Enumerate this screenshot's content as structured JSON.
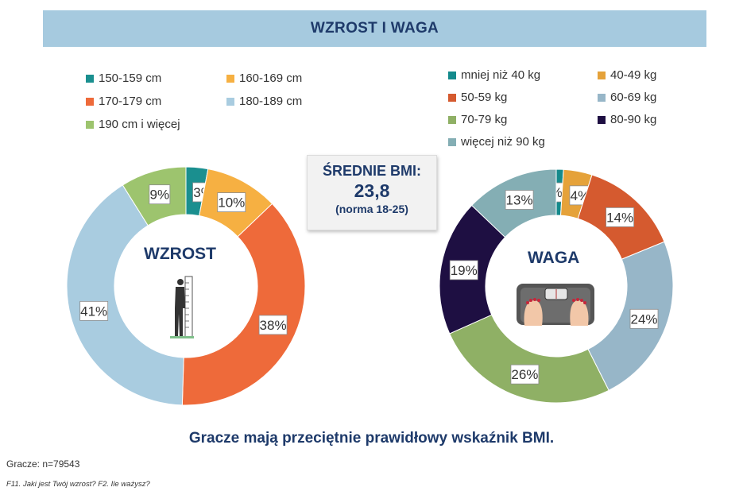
{
  "header": {
    "title": "WZROST I WAGA"
  },
  "bmi_box": {
    "title": "ŚREDNIE BMI:",
    "value": "23,8",
    "norm": "(norma 18-25)"
  },
  "subtitle": "Gracze mają przeciętnie prawidłowy wskaźnik BMI.",
  "base_note": "Gracze: n=79543",
  "question_note": "F11. Jaki jest Twój wzrost? F2. Ile ważysz?",
  "icons": {
    "height": "height-silhouette-icon",
    "weight": "bathroom-scale-icon"
  },
  "chart_data": [
    {
      "type": "pie",
      "center_label": "WZROST",
      "legend_placement": "top",
      "categories": [
        "150-159 cm",
        "160-169 cm",
        "170-179 cm",
        "180-189 cm",
        "190 cm i więcej"
      ],
      "values": [
        3,
        10,
        38,
        41,
        9
      ],
      "labels": [
        "3%",
        "10%",
        "38%",
        "41%",
        "9%"
      ],
      "colors": [
        "#1a8f8f",
        "#f6b042",
        "#ee6a3a",
        "#a9cce0",
        "#9dc46e"
      ]
    },
    {
      "type": "pie",
      "center_label": "WAGA",
      "legend_placement": "top",
      "categories": [
        "mniej niż 40 kg",
        "40-49 kg",
        "50-59 kg",
        "60-69 kg",
        "70-79 kg",
        "80-90 kg",
        "więcej niż 90 kg"
      ],
      "values": [
        1,
        4,
        14,
        24,
        26,
        19,
        13
      ],
      "labels": [
        "1%",
        "4%",
        "14%",
        "24%",
        "26%",
        "19%",
        "13%"
      ],
      "colors": [
        "#148a8c",
        "#e5a23a",
        "#d55a2f",
        "#97b6c8",
        "#8fb065",
        "#1e0f42",
        "#84aeb4"
      ]
    }
  ]
}
